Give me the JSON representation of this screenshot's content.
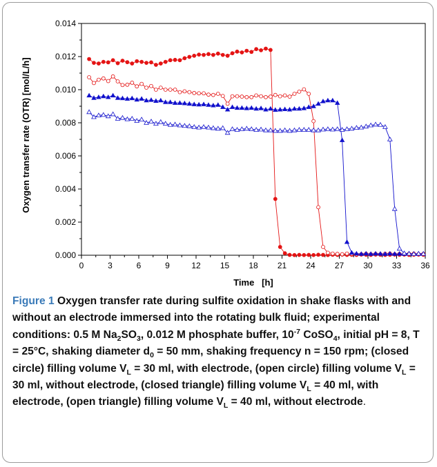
{
  "chart_data": {
    "type": "scatter",
    "xlabel": "Time   [h]",
    "ylabel": "Oxygen transfer rate (OTR)   [mol/L/h]",
    "xlim": [
      0,
      36
    ],
    "ylim": [
      0,
      0.014
    ],
    "xticks": [
      "0",
      "3",
      "6",
      "9",
      "12",
      "15",
      "18",
      "21",
      "24",
      "27",
      "30",
      "33",
      "36"
    ],
    "yticks": [
      "0.000",
      "0.002",
      "0.004",
      "0.006",
      "0.008",
      "0.010",
      "0.012",
      "0.014"
    ],
    "grid": false,
    "legend": "none",
    "series": [
      {
        "marker": "closed-circle",
        "color": "#e41414",
        "x": [
          0.8,
          1.3,
          1.8,
          2.3,
          2.8,
          3.3,
          3.8,
          4.3,
          4.8,
          5.3,
          5.8,
          6.3,
          6.8,
          7.3,
          7.8,
          8.3,
          8.8,
          9.3,
          9.8,
          10.3,
          10.8,
          11.3,
          11.8,
          12.3,
          12.8,
          13.3,
          13.8,
          14.3,
          14.8,
          15.3,
          15.8,
          16.3,
          16.8,
          17.3,
          17.8,
          18.3,
          18.8,
          19.3,
          19.8,
          20.3,
          20.8,
          21.3,
          21.8,
          22.3,
          22.8,
          23.3,
          23.8,
          24.3,
          24.8,
          25.3,
          25.8,
          26.3,
          26.8,
          27.3,
          27.8,
          28.3,
          28.8,
          29.3,
          29.8,
          30.3,
          30.8,
          31.3,
          31.8,
          32.3,
          32.8,
          33.3,
          33.8,
          34.3,
          34.8,
          35.3,
          35.8
        ],
        "y": [
          0.01185,
          0.01162,
          0.01158,
          0.01168,
          0.01165,
          0.01178,
          0.0116,
          0.01175,
          0.01166,
          0.01158,
          0.01172,
          0.01168,
          0.01162,
          0.01165,
          0.0115,
          0.01158,
          0.01168,
          0.01178,
          0.0118,
          0.01178,
          0.0119,
          0.01198,
          0.01205,
          0.01212,
          0.0121,
          0.01215,
          0.0121,
          0.01218,
          0.0121,
          0.01205,
          0.0122,
          0.0123,
          0.01225,
          0.01235,
          0.01228,
          0.01245,
          0.01238,
          0.01248,
          0.0124,
          0.0034,
          0.0005,
          0.00012,
          2e-05,
          1e-05,
          2e-05,
          1e-05,
          2e-05,
          1e-05,
          3e-05,
          2e-05,
          1e-05,
          3e-05,
          2e-05,
          4e-05,
          2e-05,
          3e-05,
          2e-05,
          4e-05,
          3e-05,
          2e-05,
          4e-05,
          3e-05,
          2e-05,
          3e-05,
          4e-05,
          3e-05,
          4e-05,
          2e-05,
          3e-05,
          4e-05,
          3e-05
        ]
      },
      {
        "marker": "open-circle",
        "color": "#e41414",
        "x": [
          0.8,
          1.3,
          1.8,
          2.3,
          2.8,
          3.3,
          3.8,
          4.3,
          4.8,
          5.3,
          5.8,
          6.3,
          6.8,
          7.3,
          7.8,
          8.3,
          8.8,
          9.3,
          9.8,
          10.3,
          10.8,
          11.3,
          11.8,
          12.3,
          12.8,
          13.3,
          13.8,
          14.3,
          14.8,
          15.3,
          15.8,
          16.3,
          16.8,
          17.3,
          17.8,
          18.3,
          18.8,
          19.3,
          19.8,
          20.3,
          20.8,
          21.3,
          21.8,
          22.3,
          22.8,
          23.3,
          23.8,
          24.3,
          24.8,
          25.3,
          25.8,
          26.3,
          26.8,
          27.3,
          27.8,
          28.3,
          28.8,
          29.3,
          29.8,
          30.3,
          30.8,
          31.3,
          31.8,
          32.3,
          32.8,
          33.3,
          33.8,
          34.3,
          34.8,
          35.3,
          35.8
        ],
        "y": [
          0.01075,
          0.0104,
          0.0106,
          0.01068,
          0.01052,
          0.0108,
          0.0105,
          0.01028,
          0.0103,
          0.01042,
          0.0102,
          0.01035,
          0.01012,
          0.01022,
          0.01,
          0.01012,
          0.01,
          0.01,
          0.01,
          0.00985,
          0.0099,
          0.00985,
          0.0098,
          0.00978,
          0.00978,
          0.0097,
          0.00968,
          0.00975,
          0.00962,
          0.00915,
          0.0096,
          0.0096,
          0.00958,
          0.00955,
          0.00955,
          0.00965,
          0.0096,
          0.00955,
          0.00958,
          0.00968,
          0.0096,
          0.00965,
          0.00958,
          0.00975,
          0.00988,
          0.01002,
          0.00975,
          0.0081,
          0.0029,
          0.0005,
          0.00015,
          0.0001,
          8e-05,
          6e-05,
          0.0001,
          8e-05,
          5e-05,
          6e-05,
          9e-05,
          6e-05,
          8e-05,
          6e-05,
          9e-05,
          0.0001,
          6e-05,
          8e-05,
          7e-05,
          9e-05,
          0.0001,
          7e-05,
          8e-05
        ]
      },
      {
        "marker": "closed-triangle",
        "color": "#1010cc",
        "x": [
          0.8,
          1.3,
          1.8,
          2.3,
          2.8,
          3.3,
          3.8,
          4.3,
          4.8,
          5.3,
          5.8,
          6.3,
          6.8,
          7.3,
          7.8,
          8.3,
          8.8,
          9.3,
          9.8,
          10.3,
          10.8,
          11.3,
          11.8,
          12.3,
          12.8,
          13.3,
          13.8,
          14.3,
          14.8,
          15.3,
          15.8,
          16.3,
          16.8,
          17.3,
          17.8,
          18.3,
          18.8,
          19.3,
          19.8,
          20.3,
          20.8,
          21.3,
          21.8,
          22.3,
          22.8,
          23.3,
          23.8,
          24.3,
          24.8,
          25.3,
          25.8,
          26.3,
          26.8,
          27.3,
          27.8,
          28.3,
          28.8,
          29.3,
          29.8,
          30.3,
          30.8,
          31.3,
          31.8,
          32.3,
          32.8,
          33.3,
          33.8,
          34.3,
          34.8,
          35.3,
          35.8
        ],
        "y": [
          0.00965,
          0.0095,
          0.00955,
          0.0096,
          0.00955,
          0.00965,
          0.0095,
          0.00948,
          0.00945,
          0.00948,
          0.0094,
          0.00945,
          0.00935,
          0.00938,
          0.00932,
          0.00935,
          0.00925,
          0.00925,
          0.0092,
          0.0092,
          0.00918,
          0.00915,
          0.00912,
          0.0091,
          0.00912,
          0.00908,
          0.00905,
          0.00908,
          0.00895,
          0.0088,
          0.00895,
          0.0089,
          0.0089,
          0.00888,
          0.0089,
          0.00885,
          0.00888,
          0.0088,
          0.00885,
          0.00878,
          0.0088,
          0.00882,
          0.0088,
          0.00885,
          0.00885,
          0.00888,
          0.00895,
          0.009,
          0.00915,
          0.0093,
          0.00935,
          0.00935,
          0.0092,
          0.00695,
          0.0008,
          0.00015,
          0.0001,
          8e-05,
          0.0001,
          8e-05,
          0.0001,
          9e-05,
          8e-05,
          0.0001,
          8e-05,
          9e-05,
          8e-05,
          0.0001,
          9e-05,
          8e-05,
          9e-05
        ]
      },
      {
        "marker": "open-triangle",
        "color": "#1010cc",
        "x": [
          0.8,
          1.3,
          1.8,
          2.3,
          2.8,
          3.3,
          3.8,
          4.3,
          4.8,
          5.3,
          5.8,
          6.3,
          6.8,
          7.3,
          7.8,
          8.3,
          8.8,
          9.3,
          9.8,
          10.3,
          10.8,
          11.3,
          11.8,
          12.3,
          12.8,
          13.3,
          13.8,
          14.3,
          14.8,
          15.3,
          15.8,
          16.3,
          16.8,
          17.3,
          17.8,
          18.3,
          18.8,
          19.3,
          19.8,
          20.3,
          20.8,
          21.3,
          21.8,
          22.3,
          22.8,
          23.3,
          23.8,
          24.3,
          24.8,
          25.3,
          25.8,
          26.3,
          26.8,
          27.3,
          27.8,
          28.3,
          28.8,
          29.3,
          29.8,
          30.3,
          30.8,
          31.3,
          31.8,
          32.3,
          32.8,
          33.3,
          33.8,
          34.3,
          34.8,
          35.3,
          35.8
        ],
        "y": [
          0.00865,
          0.00835,
          0.00845,
          0.00848,
          0.0084,
          0.00852,
          0.00825,
          0.0083,
          0.00822,
          0.00825,
          0.00812,
          0.0082,
          0.008,
          0.00808,
          0.00795,
          0.00805,
          0.00795,
          0.00788,
          0.0079,
          0.00785,
          0.00782,
          0.0078,
          0.00775,
          0.00772,
          0.00775,
          0.00772,
          0.00768,
          0.00765,
          0.00768,
          0.0074,
          0.00762,
          0.00758,
          0.00762,
          0.00765,
          0.00762,
          0.00758,
          0.0076,
          0.00755,
          0.00755,
          0.00752,
          0.00752,
          0.00755,
          0.00752,
          0.00755,
          0.00758,
          0.00758,
          0.00758,
          0.00755,
          0.00755,
          0.0076,
          0.00762,
          0.0076,
          0.00762,
          0.00758,
          0.00762,
          0.00765,
          0.0077,
          0.00772,
          0.00778,
          0.00785,
          0.0079,
          0.00788,
          0.00775,
          0.007,
          0.0028,
          0.0004,
          0.00012,
          0.0001,
          8e-05,
          0.0001,
          9e-05
        ]
      }
    ]
  },
  "caption": {
    "figure_label": "Figure 1",
    "part1": " Oxygen transfer rate during sulfite oxidation in shake flasks with and without an electrode immersed into the rotating bulk fluid; experimental conditions: 0.5 M Na",
    "sub_2a": "2",
    "part2": "SO",
    "sub_3": "3",
    "part3": ", 0.012 M phosphate buffer, 10",
    "sup_neg7": "-7",
    "part4": " CoSO",
    "sub_4": "4",
    "part5": ", initial pH = 8, T = 25°C, shaking diameter d",
    "sub_0": "0",
    "part6": " = 50 mm, shaking frequency n = 150 rpm; (closed circle) filling volume V",
    "sub_L1": "L",
    "part7": " = 30 ml, with electrode, (open circle) filling volume V",
    "sub_L2": "L",
    "part8": " = 30 ml, without electrode, (closed triangle) filling volume V",
    "sub_L3": "L",
    "part9": " = 40 ml, with electrode, (open triangle) filling volume V",
    "sub_L4": "L",
    "part10": " = 40 ml, without electrode",
    "end": "."
  }
}
